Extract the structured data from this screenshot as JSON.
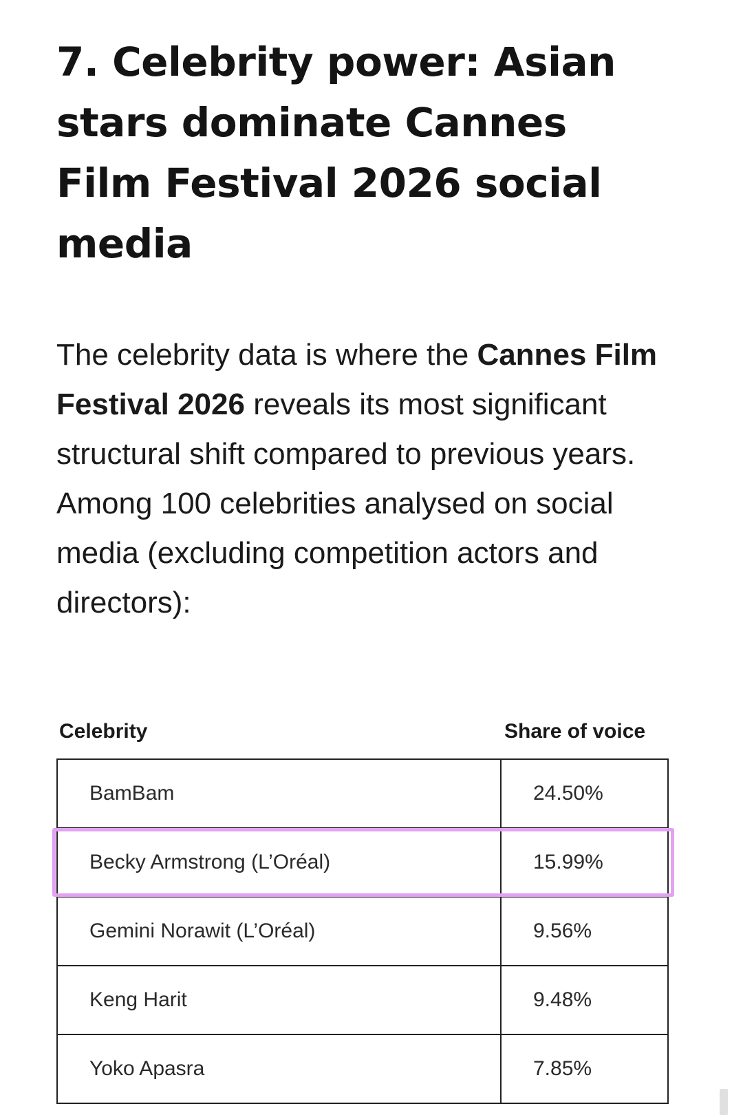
{
  "article": {
    "heading": "7. Celebrity power: Asian stars dominate Cannes Film Festival 2026 social media",
    "intro_before": "The celebrity data is where the ",
    "intro_bold": "Cannes Film Festival 2026",
    "intro_after": " reveals its most significant structural shift compared to previous years. Among 100 celebrities analysed on social media  (excluding competition actors and directors):"
  },
  "table": {
    "headers": {
      "celebrity": "Celebrity",
      "share": "Share of voice"
    },
    "rows": [
      {
        "celebrity": "BamBam",
        "share": "24.50%"
      },
      {
        "celebrity": "Becky Armstrong (L’Oréal)",
        "share": "15.99%"
      },
      {
        "celebrity": "Gemini Norawit (L’Oréal)",
        "share": "9.56%"
      },
      {
        "celebrity": "Keng Harit",
        "share": "9.48%"
      },
      {
        "celebrity": "Yoko Apasra",
        "share": "7.85%"
      }
    ],
    "highlight_color": "#e2a2f2"
  }
}
